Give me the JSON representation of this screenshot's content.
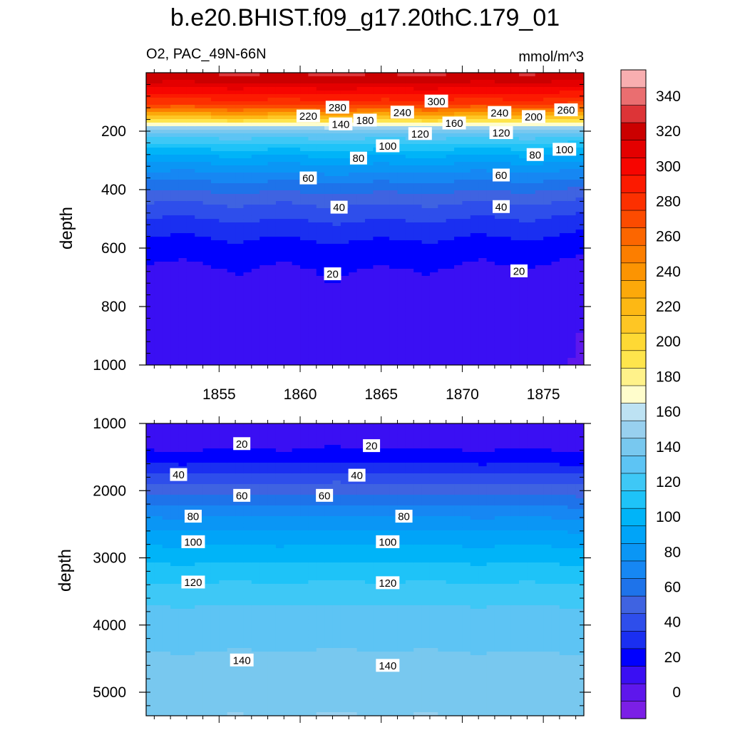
{
  "chart_data": {
    "type": "heatmap",
    "title": "b.e20.BHIST.f09_g17.20thC.179_01",
    "left_subtitle": "O2, PAC_49N-66N",
    "right_subtitle": "mmol/m^3",
    "xlabel": "",
    "ylabel": "depth",
    "xlim": [
      1850.5,
      1877.5
    ],
    "x_ticks": [
      1855,
      1860,
      1865,
      1870,
      1875
    ],
    "x_tick_labels": [
      "1855",
      "1860",
      "1865",
      "1870",
      "1875"
    ],
    "panels": [
      {
        "name": "upper",
        "ylim": [
          0,
          1000
        ],
        "y_ticks": [
          200,
          400,
          600,
          800,
          1000
        ],
        "y_tick_labels": [
          "200",
          "400",
          "600",
          "800",
          "1000"
        ],
        "contour_labels": [
          {
            "text": "300",
            "x": 1868.4,
            "z": 97
          },
          {
            "text": "280",
            "x": 1862.3,
            "z": 118
          },
          {
            "text": "260",
            "x": 1876.4,
            "z": 127
          },
          {
            "text": "240",
            "x": 1866.3,
            "z": 135
          },
          {
            "text": "240",
            "x": 1872.3,
            "z": 136
          },
          {
            "text": "220",
            "x": 1860.5,
            "z": 148
          },
          {
            "text": "200",
            "x": 1874.4,
            "z": 150
          },
          {
            "text": "180",
            "x": 1864.0,
            "z": 162
          },
          {
            "text": "160",
            "x": 1869.5,
            "z": 172
          },
          {
            "text": "140",
            "x": 1862.5,
            "z": 175
          },
          {
            "text": "120",
            "x": 1867.4,
            "z": 208
          },
          {
            "text": "120",
            "x": 1872.4,
            "z": 205
          },
          {
            "text": "100",
            "x": 1865.4,
            "z": 250
          },
          {
            "text": "100",
            "x": 1876.3,
            "z": 262
          },
          {
            "text": "80",
            "x": 1863.6,
            "z": 292
          },
          {
            "text": "80",
            "x": 1874.5,
            "z": 280
          },
          {
            "text": "60",
            "x": 1860.5,
            "z": 360
          },
          {
            "text": "60",
            "x": 1872.4,
            "z": 350
          },
          {
            "text": "40",
            "x": 1862.4,
            "z": 460
          },
          {
            "text": "40",
            "x": 1872.4,
            "z": 458
          },
          {
            "text": "20",
            "x": 1862.0,
            "z": 688
          },
          {
            "text": "20",
            "x": 1873.5,
            "z": 678
          }
        ]
      },
      {
        "name": "lower",
        "ylim": [
          1000,
          5350
        ],
        "y_ticks": [
          1000,
          2000,
          3000,
          4000,
          5000
        ],
        "y_tick_labels": [
          "1000",
          "2000",
          "3000",
          "4000",
          "5000"
        ],
        "contour_labels": [
          {
            "text": "20",
            "x": 1856.4,
            "z": 1300
          },
          {
            "text": "20",
            "x": 1864.4,
            "z": 1330
          },
          {
            "text": "40",
            "x": 1852.5,
            "z": 1760
          },
          {
            "text": "40",
            "x": 1863.5,
            "z": 1770
          },
          {
            "text": "60",
            "x": 1856.4,
            "z": 2070
          },
          {
            "text": "60",
            "x": 1861.5,
            "z": 2070
          },
          {
            "text": "80",
            "x": 1853.4,
            "z": 2380
          },
          {
            "text": "80",
            "x": 1866.4,
            "z": 2380
          },
          {
            "text": "100",
            "x": 1853.4,
            "z": 2760
          },
          {
            "text": "100",
            "x": 1865.4,
            "z": 2760
          },
          {
            "text": "120",
            "x": 1853.4,
            "z": 3360
          },
          {
            "text": "120",
            "x": 1865.4,
            "z": 3370
          },
          {
            "text": "140",
            "x": 1856.4,
            "z": 4520
          },
          {
            "text": "140",
            "x": 1865.4,
            "z": 4600
          }
        ]
      }
    ],
    "colorbar": {
      "levels": [
        -10,
        0,
        10,
        20,
        30,
        40,
        50,
        60,
        70,
        80,
        90,
        100,
        110,
        120,
        130,
        140,
        150,
        160,
        170,
        180,
        190,
        200,
        210,
        220,
        230,
        240,
        250,
        260,
        270,
        280,
        290,
        300,
        310,
        320,
        330,
        340,
        350,
        360
      ],
      "colors": [
        "#7b1fe6",
        "#5e17ec",
        "#3a0ff3",
        "#0000fe",
        "#1a2ff1",
        "#2e4eeb",
        "#3f63e1",
        "#1e73ea",
        "#1687f3",
        "#0a96f5",
        "#00a4f8",
        "#00b4f8",
        "#1ec3f8",
        "#3ec8f6",
        "#5dc4f4",
        "#78c8ef",
        "#98d0ef",
        "#bde2f3",
        "#fffdcc",
        "#fff28a",
        "#fee54c",
        "#fed934",
        "#fec624",
        "#fdb814",
        "#fca90a",
        "#fc9402",
        "#fc7e00",
        "#fc6600",
        "#fc4b00",
        "#fc3000",
        "#fc1a00",
        "#f70500",
        "#e40000",
        "#cb0000",
        "#dd3437",
        "#ea6e70",
        "#f8aeb0"
      ],
      "tick_values": [
        0,
        20,
        40,
        60,
        80,
        100,
        120,
        140,
        160,
        180,
        200,
        220,
        240,
        260,
        280,
        300,
        320,
        340
      ],
      "tick_labels": [
        "0",
        "20",
        "40",
        "60",
        "80",
        "100",
        "120",
        "140",
        "160",
        "180",
        "200",
        "220",
        "240",
        "260",
        "280",
        "300",
        "320",
        "340"
      ]
    },
    "upper_profile": [
      [
        0,
        330
      ],
      [
        20,
        326
      ],
      [
        40,
        316
      ],
      [
        60,
        305
      ],
      [
        80,
        296
      ],
      [
        100,
        285
      ],
      [
        115,
        272
      ],
      [
        125,
        262
      ],
      [
        135,
        248
      ],
      [
        145,
        232
      ],
      [
        155,
        215
      ],
      [
        165,
        197
      ],
      [
        175,
        178
      ],
      [
        185,
        162
      ],
      [
        195,
        150
      ],
      [
        210,
        138
      ],
      [
        230,
        126
      ],
      [
        255,
        113
      ],
      [
        280,
        101
      ],
      [
        310,
        90
      ],
      [
        345,
        78
      ],
      [
        380,
        67
      ],
      [
        420,
        56
      ],
      [
        470,
        45
      ],
      [
        540,
        33
      ],
      [
        600,
        25
      ],
      [
        680,
        18
      ],
      [
        800,
        14
      ],
      [
        1000,
        12
      ]
    ],
    "lower_profile": [
      [
        1000,
        13
      ],
      [
        1150,
        14
      ],
      [
        1300,
        17
      ],
      [
        1450,
        22
      ],
      [
        1600,
        30
      ],
      [
        1800,
        44
      ],
      [
        2000,
        56
      ],
      [
        2200,
        68
      ],
      [
        2400,
        80
      ],
      [
        2600,
        90
      ],
      [
        2800,
        99
      ],
      [
        3000,
        107
      ],
      [
        3200,
        114
      ],
      [
        3400,
        121
      ],
      [
        3600,
        127
      ],
      [
        3800,
        132
      ],
      [
        4000,
        136
      ],
      [
        4200,
        138
      ],
      [
        4400,
        140
      ],
      [
        4600,
        142
      ],
      [
        4800,
        145
      ],
      [
        5000,
        148
      ],
      [
        5350,
        150
      ]
    ],
    "time_shift": [
      [
        1850.5,
        0
      ],
      [
        1853,
        -2
      ],
      [
        1856,
        3
      ],
      [
        1859,
        -1
      ],
      [
        1862,
        4
      ],
      [
        1865,
        0
      ],
      [
        1868,
        3
      ],
      [
        1871,
        -2
      ],
      [
        1874,
        2
      ],
      [
        1877.5,
        -4
      ]
    ]
  }
}
